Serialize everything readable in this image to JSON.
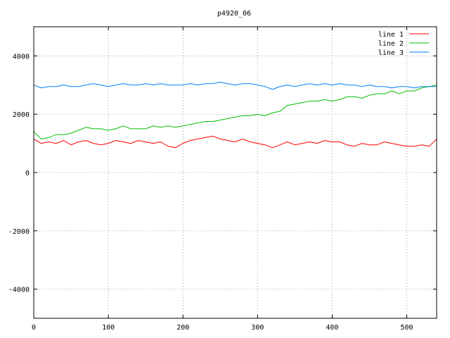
{
  "chart_data": {
    "type": "line",
    "title": "p4920_06",
    "xlabel": "",
    "ylabel": "",
    "xlim": [
      0,
      540
    ],
    "ylim": [
      -5000,
      5000
    ],
    "xticks": [
      0,
      100,
      200,
      300,
      400,
      500
    ],
    "xtick_labels": [
      "0",
      "100",
      "200",
      "300",
      "400",
      "500"
    ],
    "yticks": [
      -4000,
      -2000,
      0,
      2000,
      4000
    ],
    "ytick_labels": [
      "-4000",
      "-2000",
      "0",
      "2000",
      "4000"
    ],
    "grid": true,
    "legend_position": "top-right",
    "series": [
      {
        "name": "line 1",
        "color": "#ff0000",
        "x": [
          0,
          10,
          20,
          30,
          40,
          50,
          60,
          70,
          80,
          90,
          100,
          110,
          120,
          130,
          140,
          150,
          160,
          170,
          180,
          190,
          200,
          210,
          220,
          230,
          240,
          250,
          260,
          270,
          280,
          290,
          300,
          310,
          320,
          330,
          340,
          350,
          360,
          370,
          380,
          390,
          400,
          410,
          420,
          430,
          440,
          450,
          460,
          470,
          480,
          490,
          500,
          510,
          520,
          530,
          540
        ],
        "y": [
          1150,
          1000,
          1050,
          1000,
          1100,
          950,
          1050,
          1100,
          1000,
          950,
          1000,
          1100,
          1050,
          1000,
          1100,
          1050,
          1000,
          1050,
          900,
          850,
          1000,
          1100,
          1150,
          1200,
          1250,
          1150,
          1100,
          1050,
          1150,
          1050,
          1000,
          950,
          850,
          950,
          1050,
          950,
          1000,
          1050,
          1000,
          1100,
          1050,
          1050,
          950,
          900,
          1000,
          950,
          950,
          1050,
          1000,
          950,
          900,
          900,
          950,
          900,
          1150
        ]
      },
      {
        "name": "line 2",
        "color": "#00c000",
        "x": [
          0,
          10,
          20,
          30,
          40,
          50,
          60,
          70,
          80,
          90,
          100,
          110,
          120,
          130,
          140,
          150,
          160,
          170,
          180,
          190,
          200,
          210,
          220,
          230,
          240,
          250,
          260,
          270,
          280,
          290,
          300,
          310,
          320,
          330,
          340,
          350,
          360,
          370,
          380,
          390,
          400,
          410,
          420,
          430,
          440,
          450,
          460,
          470,
          480,
          490,
          500,
          510,
          520,
          530,
          540
        ],
        "y": [
          1400,
          1150,
          1200,
          1300,
          1300,
          1350,
          1450,
          1550,
          1500,
          1500,
          1450,
          1500,
          1600,
          1500,
          1500,
          1500,
          1600,
          1550,
          1600,
          1550,
          1600,
          1650,
          1700,
          1750,
          1750,
          1800,
          1850,
          1900,
          1950,
          1950,
          2000,
          1950,
          2050,
          2100,
          2300,
          2350,
          2400,
          2450,
          2450,
          2500,
          2450,
          2500,
          2600,
          2600,
          2550,
          2650,
          2700,
          2700,
          2800,
          2700,
          2800,
          2800,
          2900,
          2950,
          3000
        ]
      },
      {
        "name": "line 3",
        "color": "#0080ff",
        "x": [
          0,
          10,
          20,
          30,
          40,
          50,
          60,
          70,
          80,
          90,
          100,
          110,
          120,
          130,
          140,
          150,
          160,
          170,
          180,
          190,
          200,
          210,
          220,
          230,
          240,
          250,
          260,
          270,
          280,
          290,
          300,
          310,
          320,
          330,
          340,
          350,
          360,
          370,
          380,
          390,
          400,
          410,
          420,
          430,
          440,
          450,
          460,
          470,
          480,
          490,
          500,
          510,
          520,
          530,
          540
        ],
        "y": [
          3000,
          2900,
          2950,
          2950,
          3000,
          2950,
          2950,
          3000,
          3050,
          3000,
          2950,
          3000,
          3050,
          3000,
          3000,
          3050,
          3000,
          3050,
          3000,
          3000,
          3000,
          3050,
          3000,
          3050,
          3050,
          3100,
          3050,
          3000,
          3050,
          3050,
          3000,
          2950,
          2850,
          2950,
          3000,
          2950,
          3000,
          3050,
          3000,
          3050,
          3000,
          3050,
          3000,
          3000,
          2950,
          3000,
          2950,
          2950,
          2900,
          2950,
          2950,
          2900,
          2950,
          2950,
          2950
        ]
      }
    ]
  }
}
